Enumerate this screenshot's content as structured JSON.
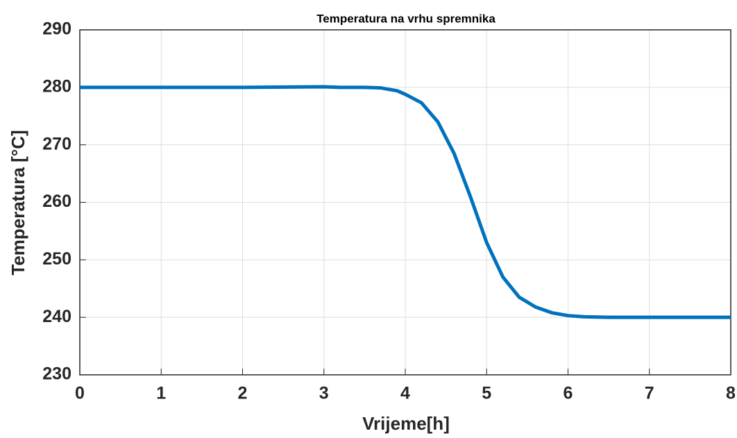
{
  "chart_data": {
    "type": "line",
    "title": "Temperatura na vrhu spremnika",
    "xlabel": "Vrijeme[h]",
    "ylabel": "Temperatura [°C]",
    "x": [
      0,
      1,
      2,
      3,
      3.2,
      3.5,
      3.7,
      3.9,
      4.0,
      4.2,
      4.4,
      4.6,
      4.8,
      5.0,
      5.2,
      5.4,
      5.6,
      5.8,
      6.0,
      6.2,
      6.5,
      7,
      8
    ],
    "values": [
      280,
      280,
      280,
      280.1,
      280,
      280,
      279.9,
      279.4,
      278.8,
      277.3,
      274,
      268.5,
      261,
      253,
      247,
      243.5,
      241.8,
      240.8,
      240.3,
      240.1,
      240,
      240,
      240
    ],
    "color": "#0072bd",
    "xlim": [
      0,
      8
    ],
    "xticks": [
      0,
      1,
      2,
      3,
      4,
      5,
      6,
      7,
      8
    ],
    "ylim": [
      230,
      290
    ],
    "yticks": [
      230,
      240,
      250,
      260,
      270,
      280,
      290
    ],
    "grid": true
  }
}
